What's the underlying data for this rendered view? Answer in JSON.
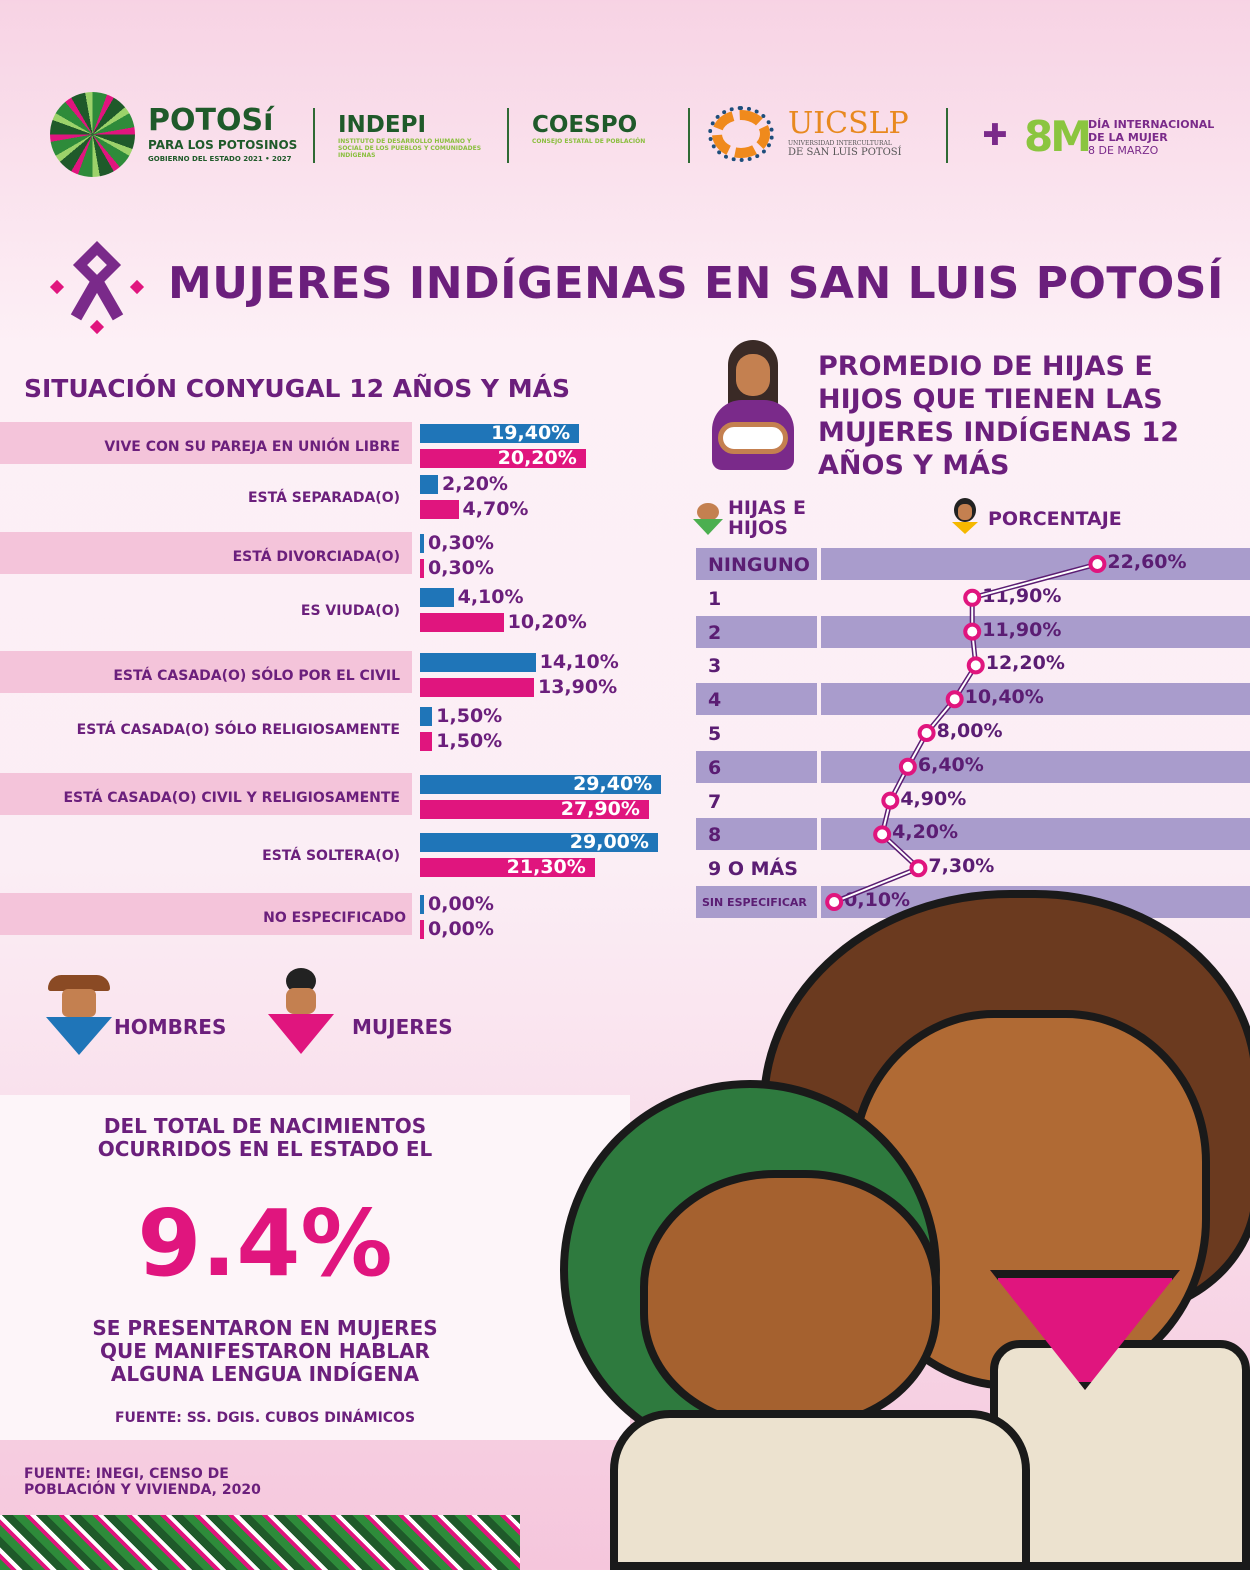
{
  "header": {
    "potosi": {
      "name": "POTOSí",
      "tagline": "PARA LOS POTOSINOS",
      "sub": "GOBIERNO DEL ESTADO 2021 • 2027"
    },
    "indepi": {
      "name": "INDEPI",
      "sub": "INSTITUTO DE DESARROLLO HUMANO Y SOCIAL DE LOS PUEBLOS Y COMUNIDADES INDÍGENAS"
    },
    "coespo": {
      "name": "COESPO",
      "sub": "CONSEJO ESTATAL DE POBLACIÓN"
    },
    "uicslp": {
      "name": "UICSLP",
      "sub1": "UNIVERSIDAD INTERCULTURAL",
      "sub2": "DE SAN LUIS POTOSÍ"
    },
    "m8": {
      "name": "8M",
      "l1": "DÍA INTERNACIONAL",
      "l2": "DE LA MUJER",
      "l3": "8 DE MARZO"
    }
  },
  "title": "MUJERES INDÍGENAS EN SAN LUIS POTOSÍ",
  "colors": {
    "hombres": "#1f75b8",
    "mujeres": "#e0157e",
    "purple": "#6b1f7c",
    "lavender": "#a99ccc"
  },
  "chart_data": [
    {
      "type": "bar",
      "title": "SITUACIÓN CONYUGAL 12 AÑOS Y MÁS",
      "categories": [
        "VIVE CON SU PAREJA EN UNIÓN LIBRE",
        "ESTÁ SEPARADA(O)",
        "ESTÁ DIVORCIADA(O)",
        "ES VIUDA(O)",
        "ESTÁ CASADA(O) SÓLO POR EL CIVIL",
        "ESTÁ CASADA(O) SÓLO RELIGIOSAMENTE",
        "ESTÁ CASADA(O) CIVIL Y RELIGIOSAMENTE",
        "ESTÁ SOLTERA(O)",
        "NO ESPECIFICADO"
      ],
      "series": [
        {
          "name": "HOMBRES",
          "values": [
            19.4,
            2.2,
            0.3,
            4.1,
            14.1,
            1.5,
            29.4,
            29.0,
            0.0
          ],
          "labels": [
            "19,40%",
            "2,20%",
            "0,30%",
            "4,10%",
            "14,10%",
            "1,50%",
            "29,40%",
            "29,00%",
            "0,00%"
          ]
        },
        {
          "name": "MUJERES",
          "values": [
            20.2,
            4.7,
            0.3,
            10.2,
            13.9,
            1.5,
            27.9,
            21.3,
            0.0
          ],
          "labels": [
            "20,20%",
            "4,70%",
            "0,30%",
            "10,20%",
            "13,90%",
            "1,50%",
            "27,90%",
            "21,30%",
            "0,00%"
          ]
        }
      ]
    },
    {
      "type": "line",
      "title": "PROMEDIO DE HIJAS E HIJOS QUE TIENEN LAS MUJERES INDÍGENAS 12 AÑOS Y MÁS",
      "col_categories": "HIJAS E HIJOS",
      "col_values": "PORCENTAJE",
      "categories": [
        "NINGUNO",
        "1",
        "2",
        "3",
        "4",
        "5",
        "6",
        "7",
        "8",
        "9 O MÁS",
        "SIN ESPECIFICAR"
      ],
      "values": [
        22.6,
        11.9,
        11.9,
        12.2,
        10.4,
        8.0,
        6.4,
        4.9,
        4.2,
        7.3,
        0.1
      ],
      "labels": [
        "22,60%",
        "11,90%",
        "11,90%",
        "12,20%",
        "10,40%",
        "8,00%",
        "6,40%",
        "4,90%",
        "4,20%",
        "7,30%",
        "0,10%"
      ]
    }
  ],
  "legend": {
    "hombres": "HOMBRES",
    "mujeres": "MUJERES"
  },
  "births": {
    "intro": "DEL TOTAL DE NACIMIENTOS OCURRIDOS EN EL ESTADO EL",
    "value": "9.4%",
    "outro": "SE PRESENTARON EN MUJERES QUE MANIFESTARON HABLAR ALGUNA LENGUA INDÍGENA",
    "source": "FUENTE: SS. DGIS. CUBOS DINÁMICOS"
  },
  "source": "FUENTE: INEGI, CENSO DE POBLACIÓN Y VIVIENDA, 2020"
}
